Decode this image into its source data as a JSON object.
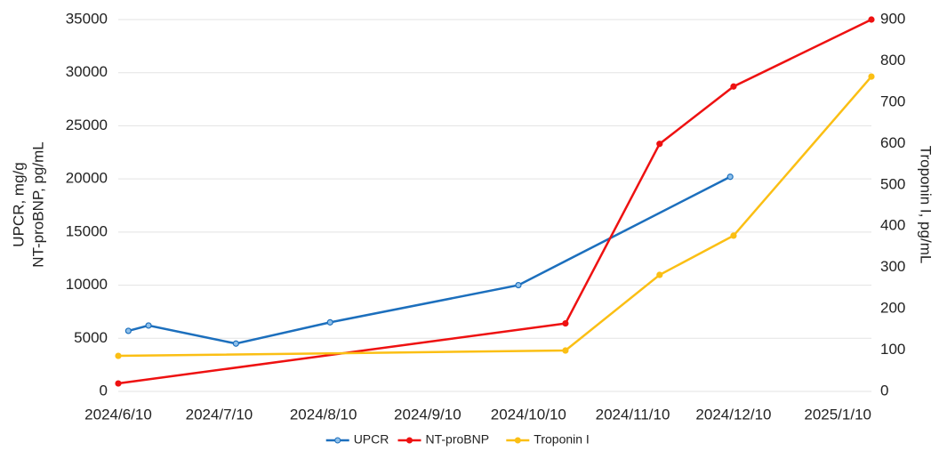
{
  "chart_data": {
    "type": "line",
    "ylabel": [
      "UPCR, mg/g",
      "NT-proBNP, pg/mL"
    ],
    "y2label": "Troponin I, pg/mL",
    "xlim": [
      "2024-06-10",
      "2025-01-20"
    ],
    "xticks": [
      {
        "value": "2024-06-10",
        "label": "2024/6/10"
      },
      {
        "value": "2024-07-10",
        "label": "2024/7/10"
      },
      {
        "value": "2024-08-10",
        "label": "2024/8/10"
      },
      {
        "value": "2024-09-10",
        "label": "2024/9/10"
      },
      {
        "value": "2024-10-10",
        "label": "2024/10/10"
      },
      {
        "value": "2024-11-10",
        "label": "2024/11/10"
      },
      {
        "value": "2024-12-10",
        "label": "2024/12/10"
      },
      {
        "value": "2025-01-10",
        "label": "2025/1/10"
      }
    ],
    "ylim": [
      0,
      35000
    ],
    "yticks": [
      0,
      5000,
      10000,
      15000,
      20000,
      25000,
      30000,
      35000
    ],
    "y2lim": [
      0,
      900
    ],
    "y2ticks": [
      0,
      100,
      200,
      300,
      400,
      500,
      600,
      700,
      800,
      900
    ],
    "grid": true,
    "legend": "bottom",
    "series": [
      {
        "name": "UPCR",
        "color": "#1c6fbd",
        "x": [
          "2024-06-13",
          "2024-06-19",
          "2024-07-15",
          "2024-08-12",
          "2024-10-07",
          "2024-12-09"
        ],
        "values": [
          5700,
          6200,
          4500,
          6500,
          10000,
          20200
        ]
      },
      {
        "name": "NT-proBNP",
        "color": "#ee1111",
        "x": [
          "2024-06-10",
          "2024-10-21",
          "2024-11-18",
          "2024-12-10",
          "2025-01-20"
        ],
        "values": [
          750,
          6400,
          23300,
          28700,
          35000
        ]
      },
      {
        "name": "Troponin I",
        "color": "#fbbf14",
        "axis": "y2",
        "x": [
          "2024-06-10",
          "2024-10-21",
          "2024-11-18",
          "2024-12-10",
          "2025-01-20"
        ],
        "values": [
          86,
          99,
          282,
          377,
          762
        ]
      }
    ]
  }
}
